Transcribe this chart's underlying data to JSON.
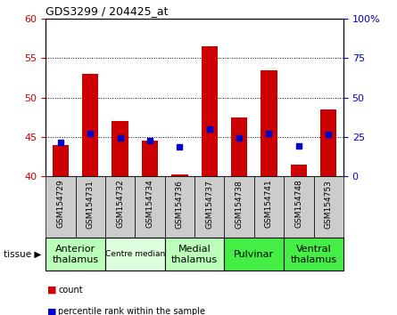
{
  "title": "GDS3299 / 204425_at",
  "samples": [
    "GSM154729",
    "GSM154731",
    "GSM154732",
    "GSM154734",
    "GSM154736",
    "GSM154737",
    "GSM154738",
    "GSM154741",
    "GSM154748",
    "GSM154753"
  ],
  "bar_values": [
    44.0,
    53.0,
    47.0,
    44.5,
    40.2,
    56.5,
    47.5,
    53.5,
    41.5,
    48.5
  ],
  "percentile_values": [
    44.3,
    45.4,
    44.9,
    44.6,
    43.7,
    46.0,
    44.9,
    45.4,
    43.9,
    45.3
  ],
  "bar_bottom": 40,
  "ylim_left": [
    40,
    60
  ],
  "ylim_right": [
    0,
    100
  ],
  "yticks_left": [
    40,
    45,
    50,
    55,
    60
  ],
  "yticks_right": [
    0,
    25,
    50,
    75,
    100
  ],
  "ytick_labels_right": [
    "0",
    "25",
    "50",
    "75",
    "100%"
  ],
  "bar_color": "#cc0000",
  "dot_color": "#0000cc",
  "tissue_groups": [
    {
      "label": "Anterior\nthalamus",
      "indices": [
        0,
        1
      ],
      "color": "#bbffbb"
    },
    {
      "label": "Centre median",
      "indices": [
        2,
        3
      ],
      "color": "#ddffdd"
    },
    {
      "label": "Medial\nthalamus",
      "indices": [
        4,
        5
      ],
      "color": "#bbffbb"
    },
    {
      "label": "Pulvinar",
      "indices": [
        6,
        7
      ],
      "color": "#44ee44"
    },
    {
      "label": "Ventral\nthalamus",
      "indices": [
        8,
        9
      ],
      "color": "#44ee44"
    }
  ],
  "tissue_label": "tissue",
  "legend_count_label": "count",
  "legend_pct_label": "percentile rank within the sample",
  "left_tick_color": "#cc0000",
  "right_tick_color": "#0000cc",
  "tick_bg_color": "#cccccc",
  "bar_width": 0.55
}
